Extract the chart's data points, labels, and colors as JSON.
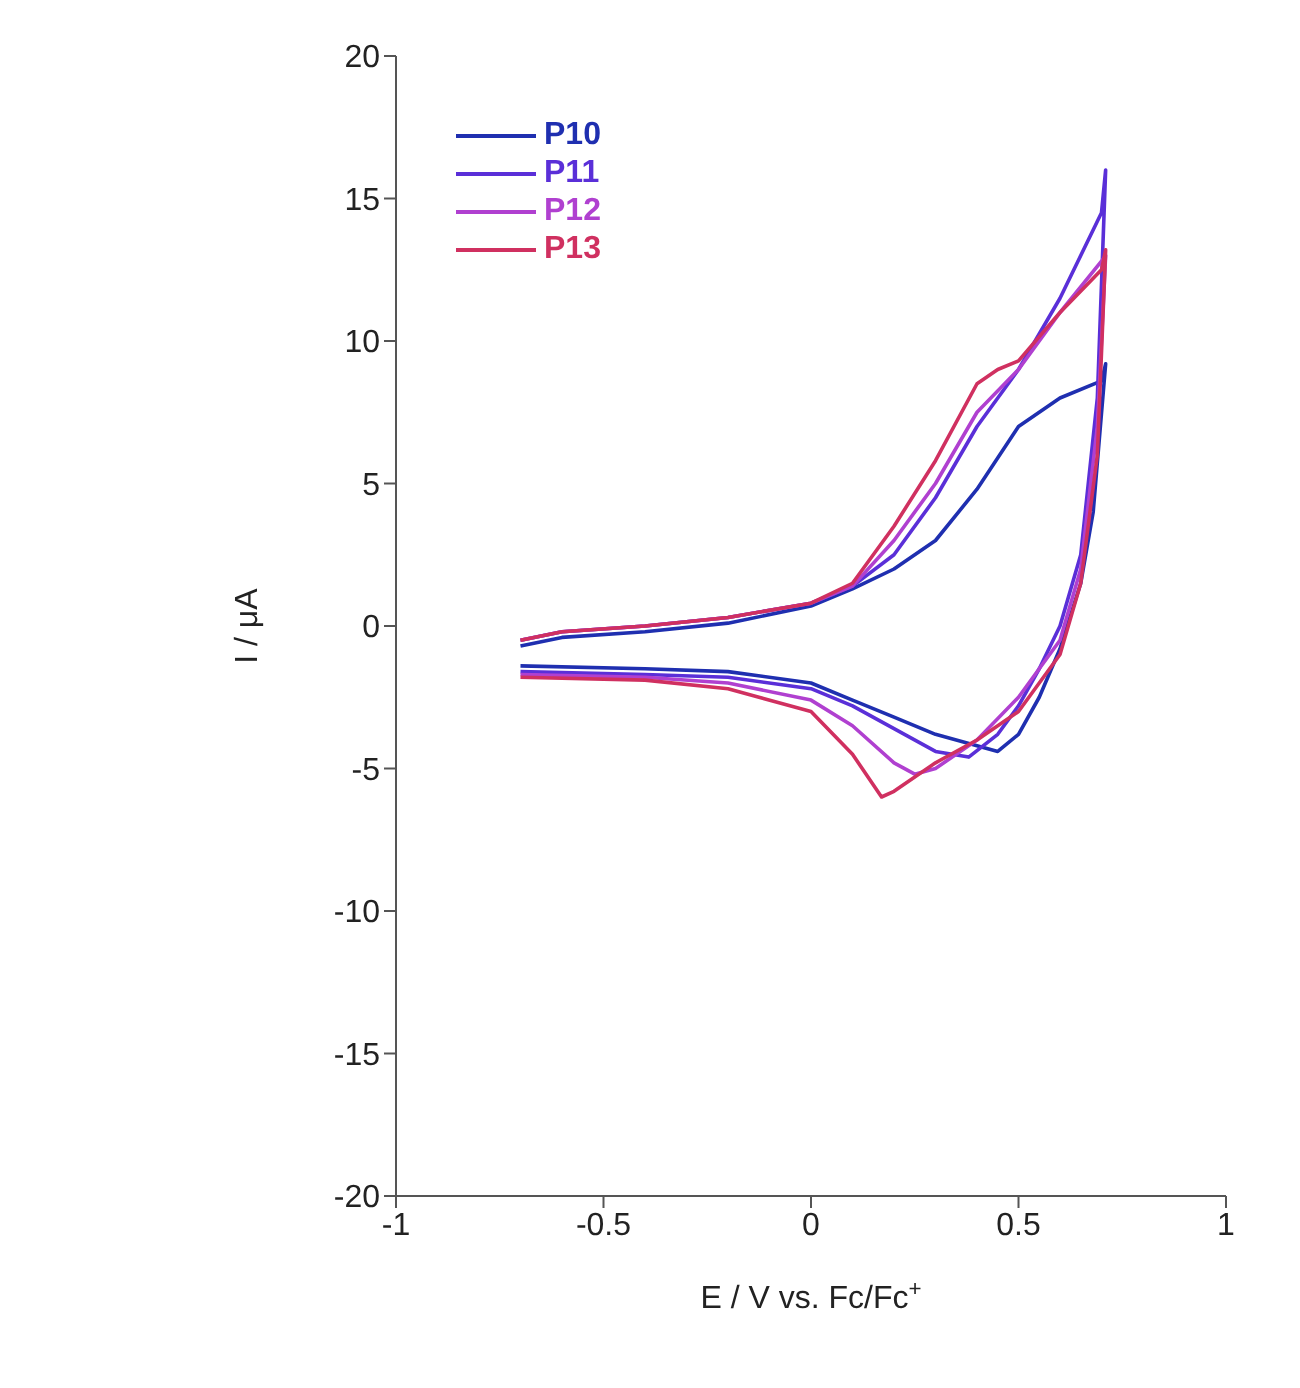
{
  "chart_data": {
    "type": "line",
    "xlabel": "E / V vs. Fc/Fc$^{+}$",
    "ylabel": "I / μA",
    "xlim": [
      -1,
      1
    ],
    "xticks": [
      -1,
      -0.5,
      0,
      0.5,
      1
    ],
    "ylim": [
      -20,
      20
    ],
    "yticks": [
      -20,
      -15,
      -10,
      -5,
      0,
      5,
      10,
      15,
      20
    ],
    "legend": "top left",
    "marker": "none",
    "line_style": "solid",
    "series": [
      {
        "name": "P10",
        "color": "#1f2fb0",
        "x": [
          -0.7,
          -0.6,
          -0.4,
          -0.2,
          0,
          0.1,
          0.2,
          0.3,
          0.4,
          0.5,
          0.6,
          0.7,
          0.71,
          0.68,
          0.65,
          0.6,
          0.55,
          0.5,
          0.45,
          0.4,
          0.3,
          0.2,
          0.1,
          0,
          -0.2,
          -0.4,
          -0.7
        ],
        "values": [
          -0.7,
          -0.4,
          -0.2,
          0.1,
          0.7,
          1.3,
          2.0,
          3.0,
          4.8,
          7.0,
          8.0,
          8.6,
          9.2,
          4,
          1.5,
          -0.8,
          -2.5,
          -3.8,
          -4.4,
          -4.2,
          -3.8,
          -3.2,
          -2.6,
          -2.0,
          -1.6,
          -1.5,
          -1.4
        ]
      },
      {
        "name": "P11",
        "color": "#5a2fd8",
        "x": [
          -0.7,
          -0.6,
          -0.4,
          -0.2,
          0,
          0.1,
          0.2,
          0.3,
          0.4,
          0.5,
          0.6,
          0.7,
          0.71,
          0.69,
          0.65,
          0.6,
          0.55,
          0.5,
          0.45,
          0.38,
          0.3,
          0.2,
          0.1,
          0,
          -0.2,
          -0.4,
          -0.7
        ],
        "values": [
          -0.5,
          -0.2,
          0,
          0.3,
          0.8,
          1.4,
          2.5,
          4.5,
          7.0,
          9.0,
          11.5,
          14.5,
          16,
          8,
          2.5,
          0,
          -1.5,
          -2.8,
          -3.8,
          -4.6,
          -4.4,
          -3.6,
          -2.8,
          -2.2,
          -1.8,
          -1.7,
          -1.6
        ]
      },
      {
        "name": "P12",
        "color": "#b040d0",
        "x": [
          -0.7,
          -0.6,
          -0.4,
          -0.2,
          0,
          0.1,
          0.2,
          0.3,
          0.4,
          0.5,
          0.6,
          0.7,
          0.71,
          0.69,
          0.65,
          0.6,
          0.5,
          0.4,
          0.3,
          0.25,
          0.2,
          0.1,
          0,
          -0.2,
          -0.4,
          -0.7
        ],
        "values": [
          -0.5,
          -0.2,
          0,
          0.3,
          0.8,
          1.4,
          3.0,
          5.0,
          7.5,
          9.0,
          11,
          12.8,
          13,
          7,
          2,
          -0.5,
          -2.5,
          -4.0,
          -5.0,
          -5.2,
          -4.8,
          -3.5,
          -2.6,
          -2.0,
          -1.8,
          -1.7
        ]
      },
      {
        "name": "P13",
        "color": "#d03060",
        "x": [
          -0.7,
          -0.6,
          -0.4,
          -0.2,
          0,
          0.1,
          0.2,
          0.3,
          0.4,
          0.45,
          0.5,
          0.6,
          0.7,
          0.71,
          0.69,
          0.65,
          0.6,
          0.5,
          0.4,
          0.3,
          0.2,
          0.17,
          0.1,
          0,
          -0.2,
          -0.4,
          -0.7
        ],
        "values": [
          -0.5,
          -0.2,
          0,
          0.3,
          0.8,
          1.5,
          3.5,
          5.8,
          8.5,
          9.0,
          9.3,
          11,
          12.5,
          13.2,
          6,
          1.5,
          -1,
          -3,
          -4.0,
          -4.8,
          -5.8,
          -6.0,
          -4.5,
          -3.0,
          -2.2,
          -1.9,
          -1.8
        ]
      }
    ]
  }
}
